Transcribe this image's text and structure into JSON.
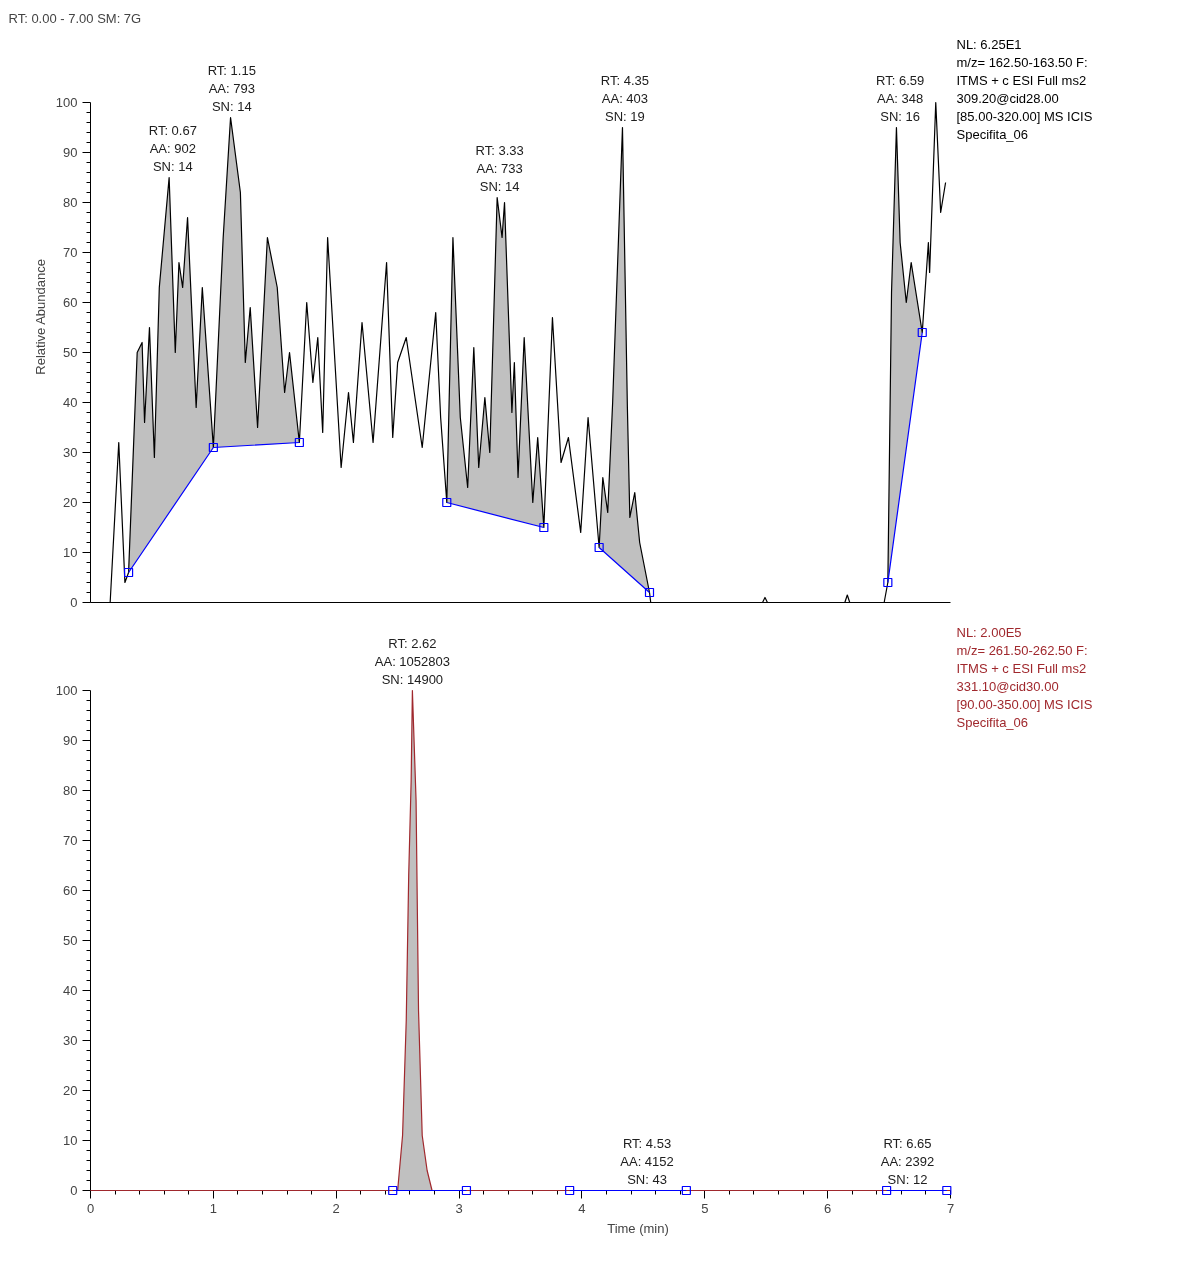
{
  "chart_data": [
    {
      "type": "line",
      "title": "RT: 0.00 - 7.00   SM: 7G",
      "ylabel": "Relative Abundance",
      "xlim": [
        0,
        7
      ],
      "ylim": [
        0,
        100
      ],
      "xticks": [
        0,
        1,
        2,
        3,
        4,
        5,
        6,
        7
      ],
      "yticks": [
        0,
        10,
        20,
        30,
        40,
        50,
        60,
        70,
        80,
        90,
        100
      ],
      "tick_labels": "y",
      "series": [
        {
          "color": "#000000",
          "x": [
            0.16,
            0.23,
            0.28,
            0.31,
            0.38,
            0.42,
            0.44,
            0.48,
            0.52,
            0.56,
            0.64,
            0.69,
            0.72,
            0.75,
            0.79,
            0.86,
            0.91,
            1.0,
            1.08,
            1.14,
            1.22,
            1.26,
            1.3,
            1.36,
            1.44,
            1.52,
            1.58,
            1.62,
            1.7,
            1.76,
            1.81,
            1.85,
            1.89,
            1.93,
            2.04,
            2.1,
            2.14,
            2.21,
            2.3,
            2.41,
            2.46,
            2.5,
            2.57,
            2.7,
            2.81,
            2.85,
            2.9,
            2.95,
            3.01,
            3.07,
            3.12,
            3.16,
            3.21,
            3.25,
            3.31,
            3.35,
            3.37,
            3.43,
            3.45,
            3.48,
            3.53,
            3.6,
            3.64,
            3.69,
            3.76,
            3.83,
            3.89,
            3.99,
            4.05,
            4.14,
            4.17,
            4.21,
            4.25,
            4.33,
            4.37,
            4.39,
            4.43,
            4.47,
            4.55,
            4.56,
            5.47,
            5.49,
            5.51,
            6.14,
            6.16,
            6.18,
            6.46,
            6.49,
            6.52,
            6.56,
            6.59,
            6.64,
            6.68,
            6.77,
            6.82,
            6.83,
            6.88,
            6.92,
            6.96
          ],
          "values": [
            0,
            32,
            4,
            6,
            50,
            52,
            36,
            55,
            29,
            63,
            85,
            50,
            68,
            63,
            77,
            39,
            63,
            31,
            73,
            97,
            82,
            48,
            59,
            35,
            73,
            63,
            42,
            50,
            32,
            60,
            44,
            53,
            34,
            73,
            27,
            42,
            32,
            56,
            32,
            68,
            33,
            48,
            53,
            31,
            58,
            37,
            20,
            73,
            37,
            23,
            51,
            27,
            41,
            30,
            81,
            73,
            80,
            38,
            48,
            25,
            53,
            20,
            33,
            15,
            57,
            28,
            33,
            14,
            37,
            11,
            25,
            18,
            40,
            95,
            39,
            17,
            22,
            12,
            2,
            0,
            0,
            1,
            0,
            0,
            1.5,
            0,
            0,
            4,
            62,
            95,
            72,
            60,
            68,
            54,
            72,
            66,
            100,
            78,
            84
          ],
          "lower": [
            null,
            null,
            null,
            6,
            8.5,
            10,
            10.7,
            12.2,
            13.6,
            15.1,
            18,
            19.8,
            20.9,
            21.9,
            23.4,
            25.9,
            27.7,
            31,
            31.1,
            31.2,
            31.3,
            31.4,
            31.4,
            31.5,
            31.6,
            31.7,
            31.8,
            31.9,
            32,
            null,
            null,
            null,
            null,
            null,
            null,
            null,
            null,
            null,
            null,
            null,
            null,
            null,
            null,
            null,
            null,
            null,
            20,
            19.7,
            19.3,
            18.9,
            18.6,
            18.4,
            18,
            17.8,
            17.4,
            17.1,
            17,
            16.6,
            16.5,
            16.3,
            16,
            15.6,
            15.3,
            15,
            null,
            null,
            null,
            null,
            null,
            11,
            10.3,
            9.5,
            8.6,
            6.8,
            6,
            5.5,
            4.6,
            3.8,
            2,
            null,
            null,
            null,
            null,
            null,
            null,
            null,
            null,
            4,
            9.4,
            16.5,
            21.9,
            30.8,
            37.9,
            54,
            null,
            null,
            null,
            null,
            null
          ],
          "upper": [
            null,
            null,
            null,
            6,
            50,
            52,
            36,
            55,
            29,
            63,
            85,
            50,
            68,
            63,
            77,
            39,
            63,
            31,
            73,
            97,
            82,
            48,
            59,
            35,
            73,
            63,
            42,
            50,
            32,
            null,
            null,
            null,
            null,
            null,
            null,
            null,
            null,
            null,
            null,
            null,
            null,
            null,
            null,
            null,
            null,
            null,
            20,
            73,
            37,
            23,
            51,
            27,
            41,
            30,
            81,
            73,
            80,
            38,
            48,
            25,
            53,
            20,
            33,
            15,
            null,
            null,
            null,
            null,
            null,
            11,
            25,
            18,
            40,
            95,
            39,
            17,
            22,
            12,
            2,
            null,
            null,
            null,
            null,
            null,
            null,
            null,
            null,
            4,
            62,
            95,
            72,
            60,
            68,
            54,
            null,
            null,
            null,
            null,
            null
          ]
        },
        {
          "color": "#0000ff",
          "marker": "square",
          "x": [
            0.31,
            1.0,
            1.7,
            null,
            2.9,
            3.69,
            null,
            4.14,
            4.55,
            null,
            6.49,
            6.77
          ],
          "values": [
            6,
            31,
            32,
            null,
            20,
            15,
            null,
            11,
            2,
            null,
            4,
            54
          ]
        }
      ],
      "annotations": [
        {
          "text": "RT: 0.67\nAA: 902\nSN: 14",
          "x": 0.67,
          "y": 85
        },
        {
          "text": "RT: 1.15\nAA: 793\nSN: 14",
          "x": 1.15,
          "y": 97
        },
        {
          "text": "RT: 3.33\nAA: 733\nSN: 14",
          "x": 3.33,
          "y": 81
        },
        {
          "text": "RT: 4.35\nAA: 403\nSN: 19",
          "x": 4.35,
          "y": 95
        },
        {
          "text": "RT: 6.59\nAA: 348\nSN: 16",
          "x": 6.59,
          "y": 95
        },
        "NL: 6.25E1\nm/z= 162.50-163.50 F:\nITMS + c ESI Full ms2\n309.20@cid28.00\n[85.00-320.00]  MS  ICIS\nSpecifita_06"
      ]
    },
    {
      "type": "line",
      "xlabel": "Time (min)",
      "xlim": [
        0,
        7
      ],
      "ylim": [
        0,
        100
      ],
      "xticks": [
        0,
        1,
        2,
        3,
        4,
        5,
        6,
        7
      ],
      "yticks": [
        0,
        10,
        20,
        30,
        40,
        50,
        60,
        70,
        80,
        90,
        100
      ],
      "series": [
        {
          "color": "#a0282d",
          "x": [
            0,
            2.46,
            2.5,
            2.54,
            2.57,
            2.59,
            2.61,
            2.62,
            2.65,
            2.67,
            2.7,
            2.74,
            2.78,
            3.06,
            7
          ],
          "values": [
            0,
            0,
            0,
            11,
            34,
            63,
            82,
            100,
            78,
            36,
            11,
            4,
            0,
            0,
            0
          ],
          "lower": [
            null,
            0,
            0,
            0,
            0,
            0,
            0,
            0,
            0,
            0,
            0,
            0,
            0,
            0,
            null
          ],
          "upper": [
            null,
            0,
            0,
            11,
            34,
            63,
            82,
            100,
            78,
            36,
            11,
            4,
            0,
            0,
            null
          ]
        },
        {
          "color": "#0000ff",
          "marker": "square",
          "x": [
            2.46,
            3.06,
            null,
            3.9,
            4.85,
            null,
            6.48,
            6.97
          ],
          "values": [
            0,
            0,
            null,
            0,
            0,
            null,
            0,
            0
          ]
        }
      ],
      "annotations": [
        {
          "text": "RT: 2.62\nAA: 1052803\nSN: 14900",
          "x": 2.62,
          "y": 100
        },
        {
          "text": "RT: 4.53\nAA: 4152\nSN: 43",
          "x": 4.53,
          "y": 0
        },
        {
          "text": "RT: 6.65\nAA: 2392\nSN: 12",
          "x": 6.65,
          "y": 0
        },
        "NL: 2.00E5\nm/z= 261.50-262.50 F:\nITMS + c ESI Full ms2\n331.10@cid30.00\n[90.00-350.00]  MS  ICIS\nSpecifita_06"
      ]
    }
  ]
}
